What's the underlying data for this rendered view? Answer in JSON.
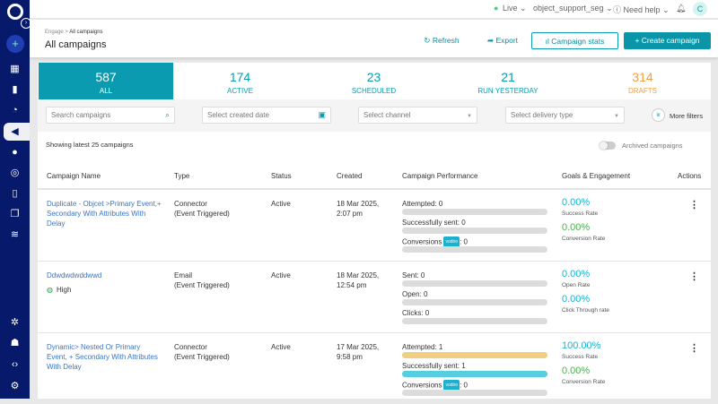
{
  "topbar": {
    "env": "Live",
    "workspace": "object_support_seg",
    "help": "Need help",
    "user_initial": "C"
  },
  "header": {
    "breadcrumb_parent": "Engage",
    "breadcrumb_current": "All campaigns",
    "title": "All campaigns",
    "refresh": "Refresh",
    "export": "Export",
    "stats": "Campaign stats",
    "create": "+ Create campaign"
  },
  "tabs": [
    {
      "count": "587",
      "label": "ALL"
    },
    {
      "count": "174",
      "label": "ACTIVE"
    },
    {
      "count": "23",
      "label": "SCHEDULED"
    },
    {
      "count": "21",
      "label": "RUN YESTERDAY"
    },
    {
      "count": "314",
      "label": "DRAFTS"
    }
  ],
  "filters": {
    "search_placeholder": "Search campaigns",
    "date_placeholder": "Select created date",
    "channel_placeholder": "Select channel",
    "delivery_placeholder": "Select delivery type",
    "more": "More filters"
  },
  "summary": "Showing latest 25 campaigns",
  "archived": "Archived campaigns",
  "columns": [
    "Campaign Name",
    "Type",
    "Status",
    "Created",
    "Campaign Performance",
    "Goals & Engagement",
    "Actions"
  ],
  "rows": [
    {
      "name": "Duplicate - Objcet >Primary Event,+ Secondary With Attributes With Delay",
      "priority": "",
      "type1": "Connector",
      "type2": "(Event Triggered)",
      "status": "Active",
      "created1": "18 Mar 2025,",
      "created2": "2:07 pm",
      "metrics": [
        {
          "label": "Attempted: 0",
          "fill": 0,
          "color": "#dcdcdc"
        },
        {
          "label": "Successfully sent: 0",
          "fill": 0,
          "color": "#dcdcdc"
        },
        {
          "label": "Conversions",
          "tag": "vodoo",
          "suffix": ": 0",
          "fill": 0,
          "color": "#dcdcdc"
        }
      ],
      "goals": [
        {
          "value": "0.00%",
          "label": "Success Rate",
          "color": "#1ab0d0"
        },
        {
          "value": "0.00%",
          "label": "Conversion Rate",
          "color": "#4caf50"
        }
      ]
    },
    {
      "name": "Ddwdwdwddwwd",
      "priority": "High",
      "type1": "Email",
      "type2": "(Event Triggered)",
      "status": "Active",
      "created1": "18 Mar 2025,",
      "created2": "12:54 pm",
      "metrics": [
        {
          "label": "Sent: 0",
          "fill": 0,
          "color": "#dcdcdc"
        },
        {
          "label": "Open: 0",
          "fill": 0,
          "color": "#dcdcdc"
        },
        {
          "label": "Clicks: 0",
          "fill": 0,
          "color": "#dcdcdc"
        }
      ],
      "goals": [
        {
          "value": "0.00%",
          "label": "Open Rate",
          "color": "#1ab0d0"
        },
        {
          "value": "0.00%",
          "label": "Click Through rate",
          "color": "#1ab0d0"
        }
      ]
    },
    {
      "name": "Dynamic> Nested Or Primary Event, + Secondary With Attributes With Delay",
      "priority": "",
      "type1": "Connector",
      "type2": "(Event Triggered)",
      "status": "Active",
      "created1": "17 Mar 2025,",
      "created2": "9:58 pm",
      "metrics": [
        {
          "label": "Attempted: 1",
          "fill": 1,
          "color": "#f0d080"
        },
        {
          "label": "Successfully sent: 1",
          "fill": 1,
          "color": "#55cfe0"
        },
        {
          "label": "Conversions",
          "tag": "vodoo",
          "suffix": ": 0",
          "fill": 0,
          "color": "#dcdcdc"
        }
      ],
      "goals": [
        {
          "value": "100.00%",
          "label": "Success Rate",
          "color": "#1ab0d0"
        },
        {
          "value": "0.00%",
          "label": "Conversion Rate",
          "color": "#4caf50"
        }
      ]
    }
  ],
  "colors": {
    "sidebar": "#06196a",
    "accent": "#0a9bb0",
    "drafts": "#f0a040"
  }
}
